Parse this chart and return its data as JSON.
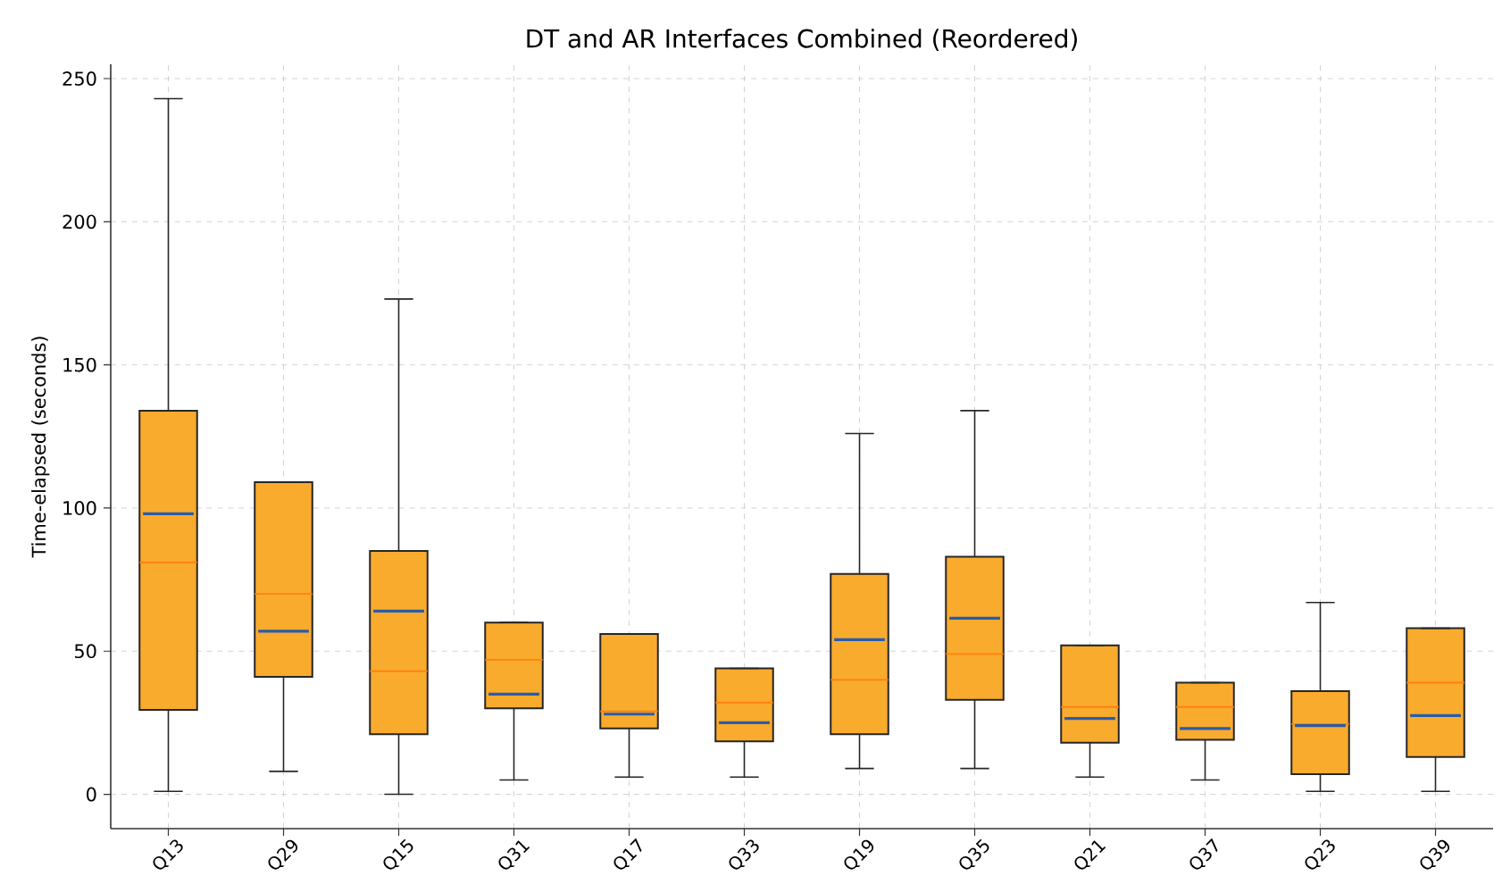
{
  "chart_data": {
    "type": "box",
    "title": "DT and AR Interfaces Combined (Reordered)",
    "ylabel": "Time-elapsed (seconds)",
    "categories": [
      "Q13",
      "Q29",
      "Q15",
      "Q31",
      "Q17",
      "Q33",
      "Q19",
      "Q35",
      "Q21",
      "Q37",
      "Q23",
      "Q39"
    ],
    "series": [
      {
        "color": "#f9ab2e",
        "boxes": [
          {
            "low": 1,
            "q1": 29.5,
            "median": 81,
            "q3": 134,
            "high": 243,
            "mean": 98
          },
          {
            "low": 8,
            "q1": 41,
            "median": 70,
            "q3": 109,
            "high": 109,
            "mean": 57
          },
          {
            "low": 0,
            "q1": 21,
            "median": 43,
            "q3": 85,
            "high": 173,
            "mean": 64
          },
          {
            "low": 5,
            "q1": 30,
            "median": 47,
            "q3": 60,
            "high": 60,
            "mean": 35
          },
          {
            "low": 6,
            "q1": 23,
            "median": 29,
            "q3": 56,
            "high": 56,
            "mean": 28
          },
          {
            "low": 6,
            "q1": 18.5,
            "median": 32,
            "q3": 44,
            "high": 44,
            "mean": 25
          },
          {
            "low": 9,
            "q1": 21,
            "median": 40,
            "q3": 77,
            "high": 126,
            "mean": 54
          },
          {
            "low": 9,
            "q1": 33,
            "median": 49,
            "q3": 83,
            "high": 134,
            "mean": 61.5
          },
          {
            "low": 6,
            "q1": 18,
            "median": 30.5,
            "q3": 52,
            "high": 52,
            "mean": 26.5
          },
          {
            "low": 5,
            "q1": 19,
            "median": 30.5,
            "q3": 39,
            "high": 39,
            "mean": 23
          },
          {
            "low": 1,
            "q1": 7,
            "median": 24.5,
            "q3": 36,
            "high": 67,
            "mean": 24
          },
          {
            "low": 1,
            "q1": 13,
            "median": 39,
            "q3": 58,
            "high": 58,
            "mean": 27.5
          }
        ]
      }
    ],
    "ylim": [
      -12,
      255
    ],
    "yticks": [
      0,
      50,
      100,
      150,
      200,
      250
    ],
    "grid": true
  }
}
